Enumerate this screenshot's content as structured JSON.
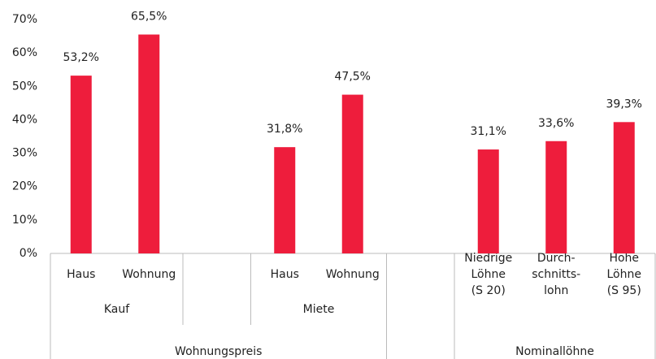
{
  "chart_data": {
    "type": "bar",
    "categories": [
      "Haus",
      "Wohnung",
      null,
      "Haus",
      "Wohnung",
      null,
      "Niedrige\nLöhne\n(S 20)",
      "Durch-\nschnitts-\nlohn",
      "Hohe\nLöhne\n(S 95)"
    ],
    "values": [
      53.2,
      65.5,
      null,
      31.8,
      47.5,
      null,
      31.1,
      33.6,
      39.3
    ],
    "value_labels": [
      "53,2%",
      "65,5%",
      null,
      "31,8%",
      "47,5%",
      null,
      "31,1%",
      "33,6%",
      "39,3%"
    ],
    "color": "#ee1d3c",
    "ylim": [
      0,
      70
    ],
    "yticks": [
      {
        "value": 0,
        "label": "0%"
      },
      {
        "value": 10,
        "label": "10%"
      },
      {
        "value": 20,
        "label": "20%"
      },
      {
        "value": 30,
        "label": "30%"
      },
      {
        "value": 40,
        "label": "40%"
      },
      {
        "value": 50,
        "label": "50%"
      },
      {
        "value": 60,
        "label": "60%"
      },
      {
        "value": 70,
        "label": "70%"
      }
    ],
    "groups": [
      [
        {
          "label": "Kauf",
          "span": [
            0,
            1
          ]
        },
        {
          "label": "Miete",
          "span": [
            3,
            4
          ]
        }
      ],
      [
        {
          "label": "Wohnungspreis",
          "span": [
            0,
            4
          ]
        },
        {
          "label": "Nominallöhne",
          "span": [
            6,
            8
          ]
        }
      ]
    ],
    "grid": false
  }
}
